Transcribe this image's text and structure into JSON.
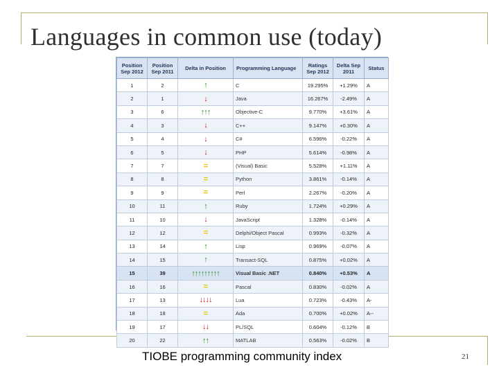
{
  "slide": {
    "title": "Languages in common use (today)",
    "footer": "TIOBE programming community index",
    "page_number": "21"
  },
  "table": {
    "headers": {
      "pos2012": "Position Sep 2012",
      "pos2011": "Position Sep 2011",
      "delta_pos": "Delta in Position",
      "lang": "Programming Language",
      "rating": "Ratings Sep 2012",
      "delta_rating": "Delta Sep 2011",
      "status": "Status"
    },
    "rows": [
      {
        "pos2012": "1",
        "pos2011": "2",
        "delta": "↑",
        "dir": "up",
        "lang": "C",
        "rating": "19.295%",
        "delta_rating": "+1.29%",
        "status": "A"
      },
      {
        "pos2012": "2",
        "pos2011": "1",
        "delta": "↓",
        "dir": "down",
        "lang": "Java",
        "rating": "16.267%",
        "delta_rating": "-2.49%",
        "status": "A"
      },
      {
        "pos2012": "3",
        "pos2011": "6",
        "delta": "↑↑↑",
        "dir": "up",
        "lang": "Objective-C",
        "rating": "9.770%",
        "delta_rating": "+3.61%",
        "status": "A"
      },
      {
        "pos2012": "4",
        "pos2011": "3",
        "delta": "↓",
        "dir": "down",
        "lang": "C++",
        "rating": "9.147%",
        "delta_rating": "+0.30%",
        "status": "A"
      },
      {
        "pos2012": "5",
        "pos2011": "4",
        "delta": "↓",
        "dir": "down",
        "lang": "C#",
        "rating": "6.596%",
        "delta_rating": "-0.22%",
        "status": "A"
      },
      {
        "pos2012": "6",
        "pos2011": "5",
        "delta": "↓",
        "dir": "down",
        "lang": "PHP",
        "rating": "5.614%",
        "delta_rating": "-0.98%",
        "status": "A"
      },
      {
        "pos2012": "7",
        "pos2011": "7",
        "delta": "=",
        "dir": "eq",
        "lang": "(Visual) Basic",
        "rating": "5.528%",
        "delta_rating": "+1.11%",
        "status": "A"
      },
      {
        "pos2012": "8",
        "pos2011": "8",
        "delta": "=",
        "dir": "eq",
        "lang": "Python",
        "rating": "3.861%",
        "delta_rating": "-0.14%",
        "status": "A"
      },
      {
        "pos2012": "9",
        "pos2011": "9",
        "delta": "=",
        "dir": "eq",
        "lang": "Perl",
        "rating": "2.267%",
        "delta_rating": "-0.20%",
        "status": "A"
      },
      {
        "pos2012": "10",
        "pos2011": "11",
        "delta": "↑",
        "dir": "up",
        "lang": "Ruby",
        "rating": "1.724%",
        "delta_rating": "+0.29%",
        "status": "A"
      },
      {
        "pos2012": "11",
        "pos2011": "10",
        "delta": "↓",
        "dir": "down",
        "lang": "JavaScript",
        "rating": "1.328%",
        "delta_rating": "-0.14%",
        "status": "A"
      },
      {
        "pos2012": "12",
        "pos2011": "12",
        "delta": "=",
        "dir": "eq",
        "lang": "Delphi/Object Pascal",
        "rating": "0.993%",
        "delta_rating": "-0.32%",
        "status": "A"
      },
      {
        "pos2012": "13",
        "pos2011": "14",
        "delta": "↑",
        "dir": "up",
        "lang": "Lisp",
        "rating": "0.969%",
        "delta_rating": "-0.07%",
        "status": "A"
      },
      {
        "pos2012": "14",
        "pos2011": "15",
        "delta": "↑",
        "dir": "up",
        "lang": "Transact-SQL",
        "rating": "0.875%",
        "delta_rating": "+0.02%",
        "status": "A"
      },
      {
        "pos2012": "15",
        "pos2011": "39",
        "delta": "↑↑↑↑↑↑↑↑↑",
        "dir": "up",
        "lang": "Visual Basic .NET",
        "rating": "0.840%",
        "delta_rating": "+0.53%",
        "status": "A",
        "highlight": true
      },
      {
        "pos2012": "16",
        "pos2011": "16",
        "delta": "=",
        "dir": "eq",
        "lang": "Pascal",
        "rating": "0.830%",
        "delta_rating": "-0.02%",
        "status": "A"
      },
      {
        "pos2012": "17",
        "pos2011": "13",
        "delta": "↓↓↓↓",
        "dir": "down",
        "lang": "Lua",
        "rating": "0.723%",
        "delta_rating": "-0.43%",
        "status": "A-"
      },
      {
        "pos2012": "18",
        "pos2011": "18",
        "delta": "=",
        "dir": "eq",
        "lang": "Ada",
        "rating": "0.700%",
        "delta_rating": "+0.02%",
        "status": "A--"
      },
      {
        "pos2012": "19",
        "pos2011": "17",
        "delta": "↓↓",
        "dir": "down",
        "lang": "PL/SQL",
        "rating": "0.604%",
        "delta_rating": "-0.12%",
        "status": "B"
      },
      {
        "pos2012": "20",
        "pos2011": "22",
        "delta": "↑↑",
        "dir": "up",
        "lang": "MATLAB",
        "rating": "0.563%",
        "delta_rating": "-0.02%",
        "status": "B"
      }
    ]
  },
  "colors": {
    "up": "#2e8b22",
    "down": "#cc1111",
    "eq": "#e8c400",
    "frame": "#b6a96b"
  }
}
